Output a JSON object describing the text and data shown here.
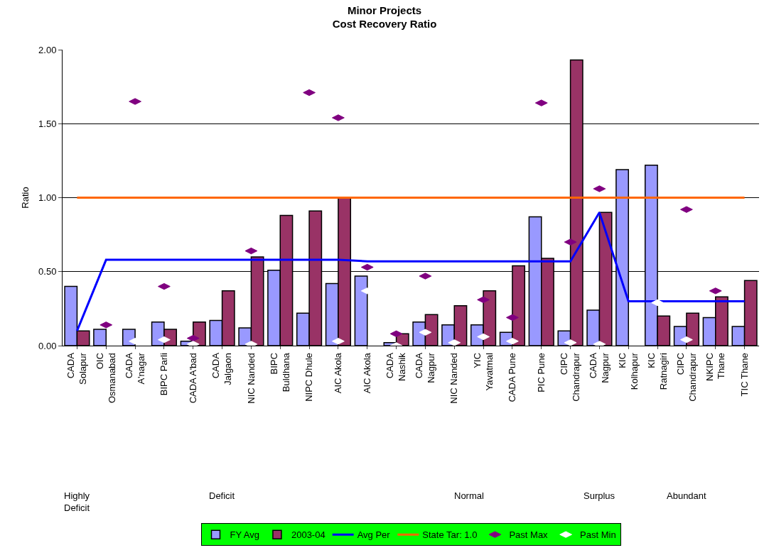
{
  "chart_data": {
    "type": "bar",
    "title": "Minor Projects\nCost Recovery Ratio",
    "ylabel": "Ratio",
    "categories": [
      "CADA\nSolapur",
      "OIC\nOsmanabad",
      "CADA\nA'nagar",
      "BIPC Parli",
      "CADA A'bad",
      "CADA\nJalgaon",
      "NIC Nanded",
      "BIPC\nBuldhana",
      "NIPC Dhule",
      "AIC Akola",
      "AIC Akola",
      "CADA\nNashik",
      "CADA\nNagpur",
      "NIC Nanded",
      "YIC\nYavatmal",
      "CADA Pune",
      "PIC Pune",
      "CIPC\nChandrapur",
      "CADA\nNagpur",
      "KIC\nKolhapur",
      "KIC\nRatnagiri",
      "CIPC\nChandrapur",
      "NKIPC\nThane",
      "TIC Thane"
    ],
    "series": [
      {
        "name": "FY Avg",
        "color": "#9999ff",
        "values": [
          0.4,
          0.11,
          0.11,
          0.16,
          0.03,
          0.17,
          0.12,
          0.51,
          0.22,
          0.42,
          0.47,
          0.02,
          0.16,
          0.14,
          0.14,
          0.09,
          0.87,
          0.1,
          0.24,
          1.19,
          1.22,
          0.13,
          0.19,
          0.13
        ]
      },
      {
        "name": "2003-04",
        "color": "#993366",
        "values": [
          0.1,
          null,
          null,
          0.11,
          0.16,
          0.37,
          0.6,
          0.88,
          0.91,
          1.0,
          null,
          0.08,
          0.21,
          0.27,
          0.37,
          0.54,
          0.59,
          1.93,
          0.9,
          null,
          0.2,
          0.22,
          0.33,
          0.44
        ]
      },
      {
        "name": "Avg Per",
        "type": "line",
        "color": "#0000ff",
        "values": [
          0.1,
          0.58,
          0.58,
          0.58,
          0.58,
          0.58,
          0.58,
          0.58,
          0.58,
          0.58,
          0.57,
          0.57,
          0.57,
          0.57,
          0.57,
          0.57,
          0.57,
          0.57,
          0.9,
          0.3,
          0.3,
          0.3,
          0.3,
          0.3
        ]
      },
      {
        "name": "State Tar: 1.0",
        "type": "line",
        "color": "#ff6600",
        "values": [
          1,
          1,
          1,
          1,
          1,
          1,
          1,
          1,
          1,
          1,
          1,
          1,
          1,
          1,
          1,
          1,
          1,
          1,
          1,
          1,
          1,
          1,
          1,
          1
        ]
      },
      {
        "name": "Past Max",
        "type": "scatter",
        "color": "#800080",
        "values": [
          null,
          0.14,
          1.65,
          0.4,
          0.05,
          null,
          0.64,
          null,
          1.71,
          1.54,
          0.53,
          0.08,
          0.47,
          null,
          0.31,
          0.19,
          1.64,
          0.7,
          1.06,
          null,
          null,
          0.92,
          0.37,
          null
        ]
      },
      {
        "name": "Past Min",
        "type": "scatter",
        "color": "#ffffff",
        "values": [
          null,
          null,
          0.03,
          0.04,
          0.01,
          null,
          0.01,
          null,
          null,
          0.03,
          0.37,
          0.0,
          0.09,
          0.02,
          0.06,
          0.03,
          null,
          0.02,
          0.01,
          null,
          0.29,
          0.04,
          null,
          null
        ]
      }
    ],
    "ylim": [
      0,
      2
    ],
    "yticks": [
      {
        "value": 0,
        "label": "0.00"
      },
      {
        "value": 0.5,
        "label": "0.50"
      },
      {
        "value": 1,
        "label": "1.00"
      },
      {
        "value": 1.5,
        "label": "1.50"
      },
      {
        "value": 2,
        "label": "2.00"
      }
    ],
    "grid": "y",
    "legend": "bottom",
    "annotations": [
      "Highly\nDeficit",
      "Deficit",
      "Normal",
      "Surplus",
      "Abundant"
    ]
  }
}
